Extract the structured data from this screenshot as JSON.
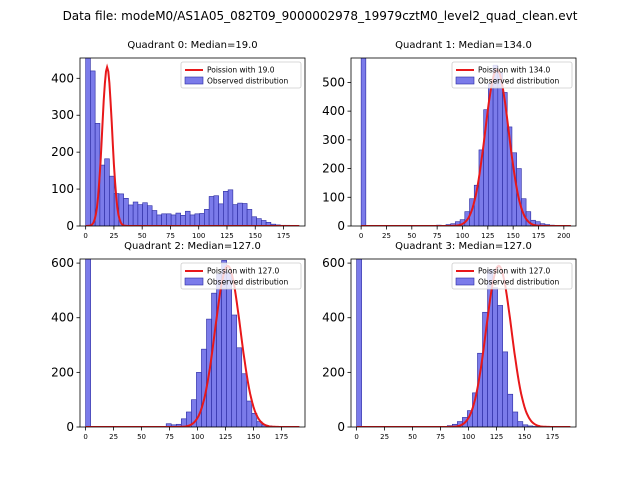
{
  "suptitle": "Data file: modeM0/AS1A05_082T09_9000002978_19979cztM0_level2_quad_clean.evt",
  "colors": {
    "hist_fill": "#7b7bea",
    "hist_edge": "#2a2aa0",
    "poisson": "#e8181a"
  },
  "chart_data": [
    {
      "type": "bar",
      "title": "Quadrant 0: Median=19.0",
      "legend": [
        "Poission with 19.0",
        "Observed distribution"
      ],
      "legend_loc": "top-right",
      "xlim": [
        -5,
        194
      ],
      "ylim": [
        0,
        455
      ],
      "xticks": [
        0,
        25,
        50,
        75,
        100,
        125,
        150,
        175
      ],
      "yticks": [
        0,
        100,
        200,
        300,
        400
      ],
      "bin_start": 0,
      "bin_width": 4.2,
      "hist": [
        455,
        420,
        278,
        165,
        182,
        135,
        88,
        87,
        75,
        57,
        65,
        58,
        63,
        55,
        42,
        30,
        33,
        33,
        30,
        35,
        29,
        40,
        30,
        33,
        34,
        45,
        80,
        82,
        60,
        94,
        98,
        58,
        62,
        61,
        45,
        25,
        20,
        15,
        10,
        5,
        3,
        2,
        2,
        1
      ],
      "poisson": {
        "mean": 19,
        "peak": 430
      }
    },
    {
      "type": "bar",
      "title": "Quadrant 1: Median=134.0",
      "legend": [
        "Poission with 134.0",
        "Observed distribution"
      ],
      "legend_loc": "top-right",
      "xlim": [
        -10,
        212
      ],
      "ylim": [
        0,
        585
      ],
      "xticks": [
        0,
        25,
        50,
        75,
        100,
        125,
        150,
        175,
        200
      ],
      "yticks": [
        0,
        100,
        200,
        300,
        400,
        500
      ],
      "bin_start": 0,
      "bin_width": 4.65,
      "hist": [
        585,
        0,
        0,
        0,
        0,
        0,
        0,
        0,
        0,
        0,
        0,
        0,
        0,
        0,
        0,
        0,
        3,
        2,
        5,
        8,
        15,
        22,
        50,
        95,
        142,
        265,
        405,
        495,
        560,
        535,
        465,
        345,
        255,
        200,
        95,
        50,
        20,
        15,
        8,
        5,
        3,
        1,
        1,
        1
      ],
      "poisson": {
        "mean": 134,
        "peak": 545
      }
    },
    {
      "type": "bar",
      "title": "Quadrant 2: Median=127.0",
      "legend": [
        "Poission with 127.0",
        "Observed distribution"
      ],
      "legend_loc": "top-right",
      "xlim": [
        -5,
        196
      ],
      "ylim": [
        0,
        615
      ],
      "xticks": [
        0,
        25,
        50,
        75,
        100,
        125,
        150,
        175
      ],
      "yticks": [
        0,
        200,
        400,
        600
      ],
      "bin_start": 0,
      "bin_width": 4.5,
      "hist": [
        615,
        0,
        0,
        0,
        0,
        0,
        0,
        0,
        0,
        0,
        0,
        0,
        0,
        0,
        0,
        0,
        12,
        8,
        10,
        30,
        55,
        100,
        200,
        285,
        395,
        490,
        560,
        610,
        565,
        410,
        290,
        195,
        95,
        50,
        20,
        8,
        4,
        2,
        1,
        1,
        1
      ],
      "poisson": {
        "mean": 127,
        "peak": 590
      }
    },
    {
      "type": "bar",
      "title": "Quadrant 3: Median=127.0",
      "legend": [
        "Poission with 127.0",
        "Observed distribution"
      ],
      "legend_loc": "top-right",
      "xlim": [
        -5,
        196
      ],
      "ylim": [
        0,
        615
      ],
      "xticks": [
        0,
        25,
        50,
        75,
        100,
        125,
        150,
        175
      ],
      "yticks": [
        0,
        200,
        400,
        600
      ],
      "bin_start": 0,
      "bin_width": 4.5,
      "hist": [
        615,
        0,
        0,
        0,
        0,
        0,
        0,
        0,
        0,
        0,
        0,
        0,
        0,
        0,
        0,
        0,
        0,
        0,
        5,
        10,
        20,
        35,
        60,
        125,
        270,
        420,
        575,
        510,
        445,
        275,
        120,
        55,
        20,
        8,
        4,
        2,
        1
      ],
      "poisson": {
        "mean": 127,
        "peak": 590
      }
    }
  ]
}
